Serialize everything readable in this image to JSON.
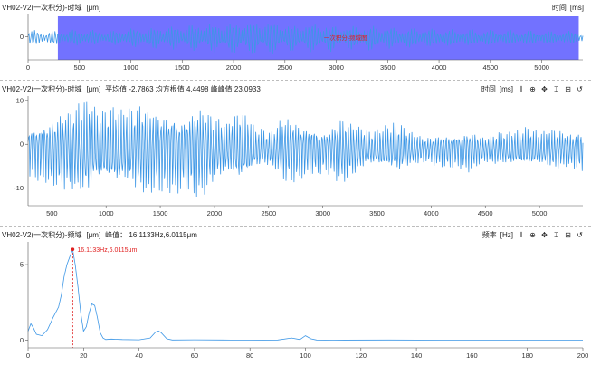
{
  "panel1": {
    "title": "VH02-V2(一次积分)-时域",
    "unit": "[μm]",
    "right_label": "时间",
    "right_unit": "[ms]"
  },
  "panel2": {
    "title": "VH02-V2(一次积分)-时域",
    "unit": "[μm]",
    "stats": "平均值 -2.7863 均方根值 4.4498 峰峰值 23.0933",
    "right_label": "时间",
    "right_unit": "[ms]",
    "icons": [
      "waveform-icon",
      "zoom-icon",
      "move-icon",
      "fit-vertical-icon",
      "fit-horizontal-icon",
      "reset-icon"
    ]
  },
  "panel3": {
    "title": "VH02-V2(一次积分)-频域",
    "unit": "[μm]",
    "stats": "峰值： 16.1133Hz,6.0115μm",
    "right_label": "频率",
    "right_unit": "[Hz]",
    "icons": [
      "waveform-icon",
      "zoom-icon",
      "move-icon",
      "fit-vertical-icon",
      "fit-horizontal-icon",
      "reset-icon"
    ]
  },
  "colors": {
    "line": "#3d97e6",
    "selection": "#7272ff",
    "marker": "#e02020",
    "axis": "#555555"
  },
  "chart_data": [
    {
      "type": "line",
      "name": "overview",
      "xlabel": "时间",
      "ylabel": "",
      "xlim": [
        0,
        5400
      ],
      "ylim": [
        -1,
        1
      ],
      "x_ticks": [
        0,
        500,
        1000,
        1500,
        2000,
        2500,
        3000,
        3500,
        4000,
        4500,
        5000
      ],
      "y_ticks": [
        0
      ],
      "selection": [
        290,
        5360
      ],
      "selection_label": "一次积分-频域图",
      "series": [
        {
          "values": [
            -0.35,
            0.32,
            0.4,
            -0.3,
            -0.46,
            0.52,
            0.62,
            -0.7,
            -0.76,
            0.82,
            0.62,
            -0.7,
            -0.55,
            0.6,
            0.5,
            -0.46,
            -0.4,
            0.38,
            0.36,
            -0.34,
            -0.3,
            0.3
          ]
        }
      ]
    },
    {
      "type": "line",
      "name": "time-domain",
      "xlabel": "时间",
      "ylabel": "",
      "xlim": [
        280,
        5400
      ],
      "ylim": [
        -14,
        11
      ],
      "x_ticks": [
        500,
        1000,
        1500,
        2000,
        2500,
        3000,
        3500,
        4000,
        4500,
        5000
      ],
      "y_ticks": [
        10,
        0,
        -10
      ],
      "series": [
        {
          "values": [
            -6,
            7,
            -9,
            10,
            -12,
            8,
            -10,
            9,
            -11,
            10,
            -10,
            9,
            -12,
            8,
            -6,
            9,
            -5,
            4,
            -8,
            7,
            -6,
            5,
            -8,
            6,
            -4,
            5,
            -6,
            4,
            -3,
            4,
            -4,
            5,
            -3,
            4,
            -4,
            5,
            -4,
            5,
            -4,
            5
          ]
        }
      ]
    },
    {
      "type": "line",
      "name": "spectrum",
      "xlabel": "频率",
      "ylabel": "",
      "xlim": [
        0,
        200
      ],
      "ylim": [
        -0.5,
        6.5
      ],
      "x_ticks": [
        0,
        20,
        40,
        60,
        80,
        100,
        120,
        140,
        160,
        180,
        200
      ],
      "y_ticks": [
        5,
        0
      ],
      "peak": {
        "x": 16.1133,
        "y": 6.0115,
        "label": "16.1133Hz,6.0115μm"
      },
      "series": [
        {
          "x": [
            0,
            1,
            2,
            3,
            5,
            7,
            9,
            11,
            12,
            13,
            14,
            15,
            16.1,
            17,
            18,
            19,
            20,
            21,
            22,
            23,
            24,
            25,
            26,
            27,
            28,
            30,
            34,
            40,
            44,
            46,
            47,
            48,
            50,
            52,
            60,
            70,
            80,
            90,
            95,
            98,
            100,
            102,
            104,
            110,
            130,
            150,
            170,
            200
          ],
          "y": [
            0.6,
            1.1,
            0.8,
            0.4,
            0.3,
            0.7,
            1.5,
            2.2,
            3.0,
            4.2,
            5.0,
            5.5,
            6.0,
            5.0,
            3.5,
            1.8,
            0.6,
            0.9,
            1.8,
            2.4,
            2.3,
            1.5,
            0.5,
            0.15,
            0.05,
            0.08,
            0.05,
            0.03,
            0.15,
            0.55,
            0.62,
            0.5,
            0.1,
            0.02,
            0.03,
            0.02,
            0.01,
            0.02,
            0.15,
            0.05,
            0.3,
            0.1,
            0.02,
            0.01,
            0.02,
            0.01,
            0.01,
            0.01
          ]
        }
      ]
    }
  ]
}
